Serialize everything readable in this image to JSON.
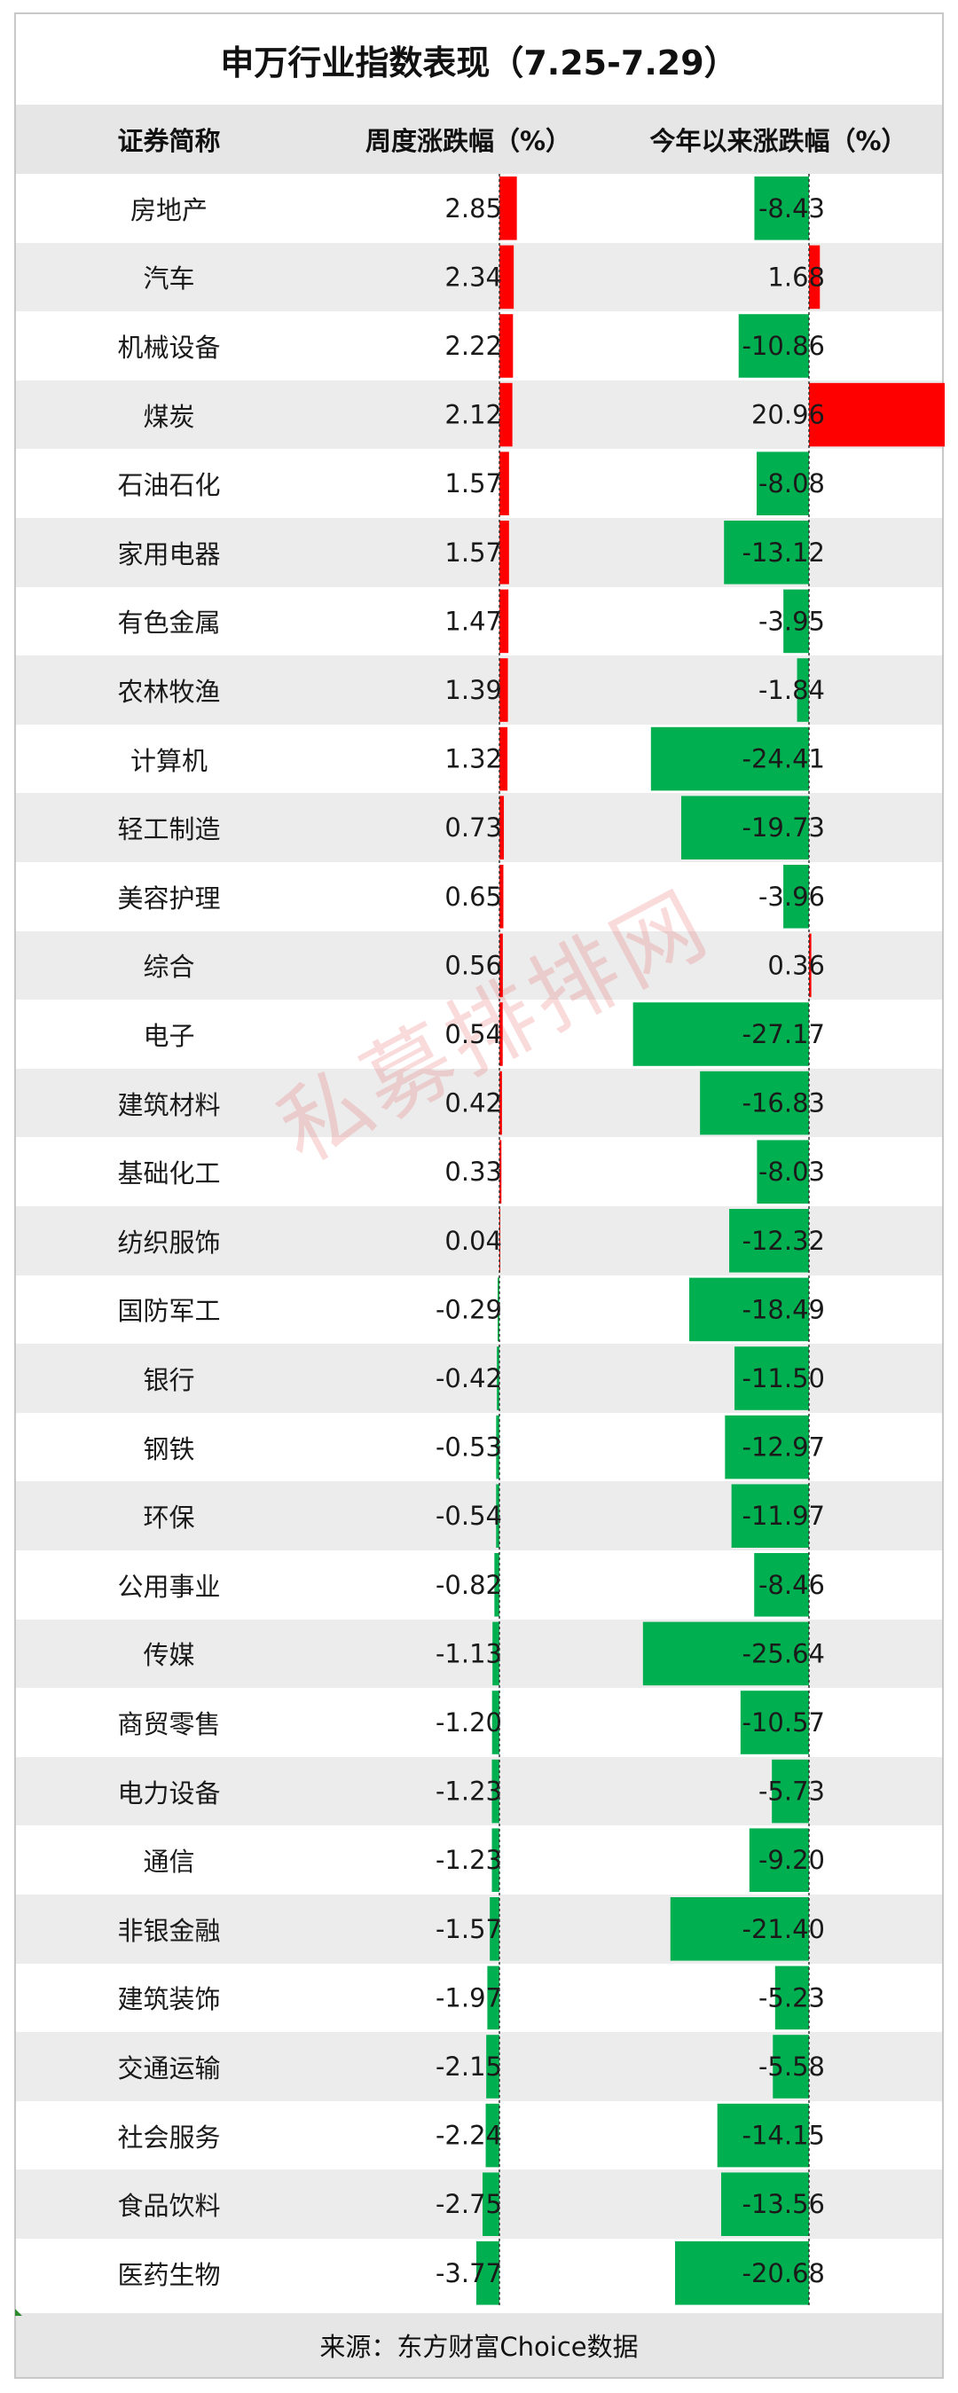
{
  "title": "申万行业指数表现（7.25-7.29）",
  "headers": {
    "name": "证券简称",
    "weekly": "周度涨跌幅（%）",
    "ytd": "今年以来涨跌幅（%）"
  },
  "watermark": "私募排排网",
  "footer": "来源：东方财富Choice数据",
  "colors": {
    "positive": "#ff0000",
    "negative": "#00b050",
    "header_bg": "#e6e6e6",
    "alt_row": "#ececec"
  },
  "chart_data": {
    "type": "table",
    "columns": [
      "证券简称",
      "周度涨跌幅（%）",
      "今年以来涨跌幅（%）"
    ],
    "rows": [
      {
        "name": "房地产",
        "weekly": 2.85,
        "ytd": -8.43
      },
      {
        "name": "汽车",
        "weekly": 2.34,
        "ytd": 1.68
      },
      {
        "name": "机械设备",
        "weekly": 2.22,
        "ytd": -10.86
      },
      {
        "name": "煤炭",
        "weekly": 2.12,
        "ytd": 20.96
      },
      {
        "name": "石油石化",
        "weekly": 1.57,
        "ytd": -8.08
      },
      {
        "name": "家用电器",
        "weekly": 1.57,
        "ytd": -13.12
      },
      {
        "name": "有色金属",
        "weekly": 1.47,
        "ytd": -3.95
      },
      {
        "name": "农林牧渔",
        "weekly": 1.39,
        "ytd": -1.84
      },
      {
        "name": "计算机",
        "weekly": 1.32,
        "ytd": -24.41
      },
      {
        "name": "轻工制造",
        "weekly": 0.73,
        "ytd": -19.73
      },
      {
        "name": "美容护理",
        "weekly": 0.65,
        "ytd": -3.96
      },
      {
        "name": "综合",
        "weekly": 0.56,
        "ytd": 0.36
      },
      {
        "name": "电子",
        "weekly": 0.54,
        "ytd": -27.17
      },
      {
        "name": "建筑材料",
        "weekly": 0.42,
        "ytd": -16.83
      },
      {
        "name": "基础化工",
        "weekly": 0.33,
        "ytd": -8.03
      },
      {
        "name": "纺织服饰",
        "weekly": 0.04,
        "ytd": -12.32
      },
      {
        "name": "国防军工",
        "weekly": -0.29,
        "ytd": -18.49
      },
      {
        "name": "银行",
        "weekly": -0.42,
        "ytd": -11.5
      },
      {
        "name": "钢铁",
        "weekly": -0.53,
        "ytd": -12.97
      },
      {
        "name": "环保",
        "weekly": -0.54,
        "ytd": -11.97
      },
      {
        "name": "公用事业",
        "weekly": -0.82,
        "ytd": -8.46
      },
      {
        "name": "传媒",
        "weekly": -1.13,
        "ytd": -25.64
      },
      {
        "name": "商贸零售",
        "weekly": -1.2,
        "ytd": -10.57
      },
      {
        "name": "电力设备",
        "weekly": -1.23,
        "ytd": -5.73
      },
      {
        "name": "通信",
        "weekly": -1.23,
        "ytd": -9.2
      },
      {
        "name": "非银金融",
        "weekly": -1.57,
        "ytd": -21.4
      },
      {
        "name": "建筑装饰",
        "weekly": -1.97,
        "ytd": -5.23
      },
      {
        "name": "交通运输",
        "weekly": -2.15,
        "ytd": -5.58
      },
      {
        "name": "社会服务",
        "weekly": -2.24,
        "ytd": -14.15
      },
      {
        "name": "食品饮料",
        "weekly": -2.75,
        "ytd": -13.56
      },
      {
        "name": "医药生物",
        "weekly": -3.77,
        "ytd": -20.68
      }
    ]
  }
}
